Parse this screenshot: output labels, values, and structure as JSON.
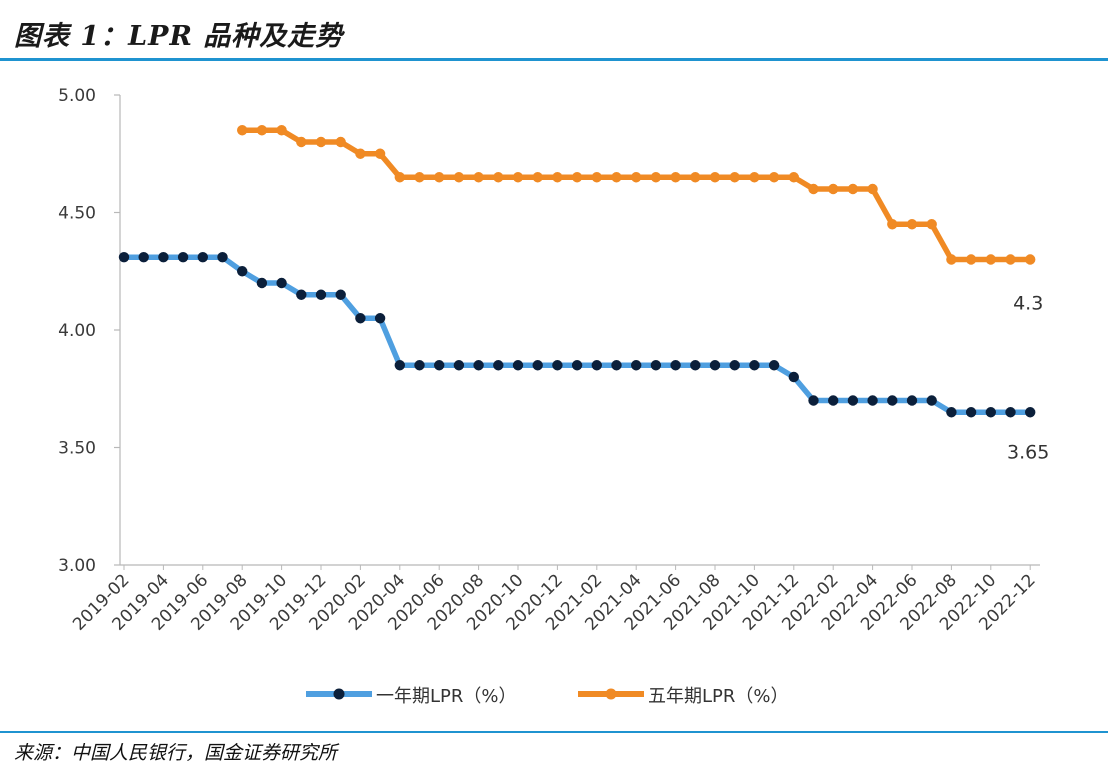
{
  "title": "图表 1：LPR 品种及走势",
  "source": "来源：中国人民银行，国金证券研究所",
  "colors": {
    "one_year": "#4f9fe0",
    "five_year": "#f08a24",
    "marker_one_year": "#0b1f3a",
    "marker_five_year": "#f08a24",
    "rule": "#1f93d0",
    "axis": "#b8b8b8"
  },
  "chart_data": {
    "type": "line",
    "ylim": [
      3.0,
      5.0
    ],
    "y_ticks": [
      "3.00",
      "3.50",
      "4.00",
      "4.50",
      "5.00"
    ],
    "x_tick_labels": [
      "2019-02",
      "2019-04",
      "2019-06",
      "2019-08",
      "2019-10",
      "2019-12",
      "2020-02",
      "2020-04",
      "2020-06",
      "2020-08",
      "2020-10",
      "2020-12",
      "2021-02",
      "2021-04",
      "2021-06",
      "2021-08",
      "2021-10",
      "2021-12",
      "2022-02",
      "2022-04",
      "2022-06",
      "2022-08",
      "2022-10",
      "2022-12"
    ],
    "x": [
      "2019-02",
      "2019-03",
      "2019-04",
      "2019-05",
      "2019-06",
      "2019-07",
      "2019-08",
      "2019-09",
      "2019-10",
      "2019-11",
      "2019-12",
      "2020-01",
      "2020-02",
      "2020-03",
      "2020-04",
      "2020-05",
      "2020-06",
      "2020-07",
      "2020-08",
      "2020-09",
      "2020-10",
      "2020-11",
      "2020-12",
      "2021-01",
      "2021-02",
      "2021-03",
      "2021-04",
      "2021-05",
      "2021-06",
      "2021-07",
      "2021-08",
      "2021-09",
      "2021-10",
      "2021-11",
      "2021-12",
      "2022-01",
      "2022-02",
      "2022-03",
      "2022-04",
      "2022-05",
      "2022-06",
      "2022-07",
      "2022-08",
      "2022-09",
      "2022-10",
      "2022-11",
      "2022-12"
    ],
    "series": [
      {
        "name": "一年期LPR（%）",
        "values": [
          4.31,
          4.31,
          4.31,
          4.31,
          4.31,
          4.31,
          4.25,
          4.2,
          4.2,
          4.15,
          4.15,
          4.15,
          4.05,
          4.05,
          3.85,
          3.85,
          3.85,
          3.85,
          3.85,
          3.85,
          3.85,
          3.85,
          3.85,
          3.85,
          3.85,
          3.85,
          3.85,
          3.85,
          3.85,
          3.85,
          3.85,
          3.85,
          3.85,
          3.85,
          3.8,
          3.7,
          3.7,
          3.7,
          3.7,
          3.7,
          3.7,
          3.7,
          3.65,
          3.65,
          3.65,
          3.65,
          3.65
        ],
        "end_label": "3.65"
      },
      {
        "name": "五年期LPR（%）",
        "values": [
          null,
          null,
          null,
          null,
          null,
          null,
          4.85,
          4.85,
          4.85,
          4.8,
          4.8,
          4.8,
          4.75,
          4.75,
          4.65,
          4.65,
          4.65,
          4.65,
          4.65,
          4.65,
          4.65,
          4.65,
          4.65,
          4.65,
          4.65,
          4.65,
          4.65,
          4.65,
          4.65,
          4.65,
          4.65,
          4.65,
          4.65,
          4.65,
          4.65,
          4.6,
          4.6,
          4.6,
          4.6,
          4.45,
          4.45,
          4.45,
          4.3,
          4.3,
          4.3,
          4.3,
          4.3
        ],
        "end_label": "4.3"
      }
    ],
    "legend_position": "bottom",
    "grid": false
  }
}
